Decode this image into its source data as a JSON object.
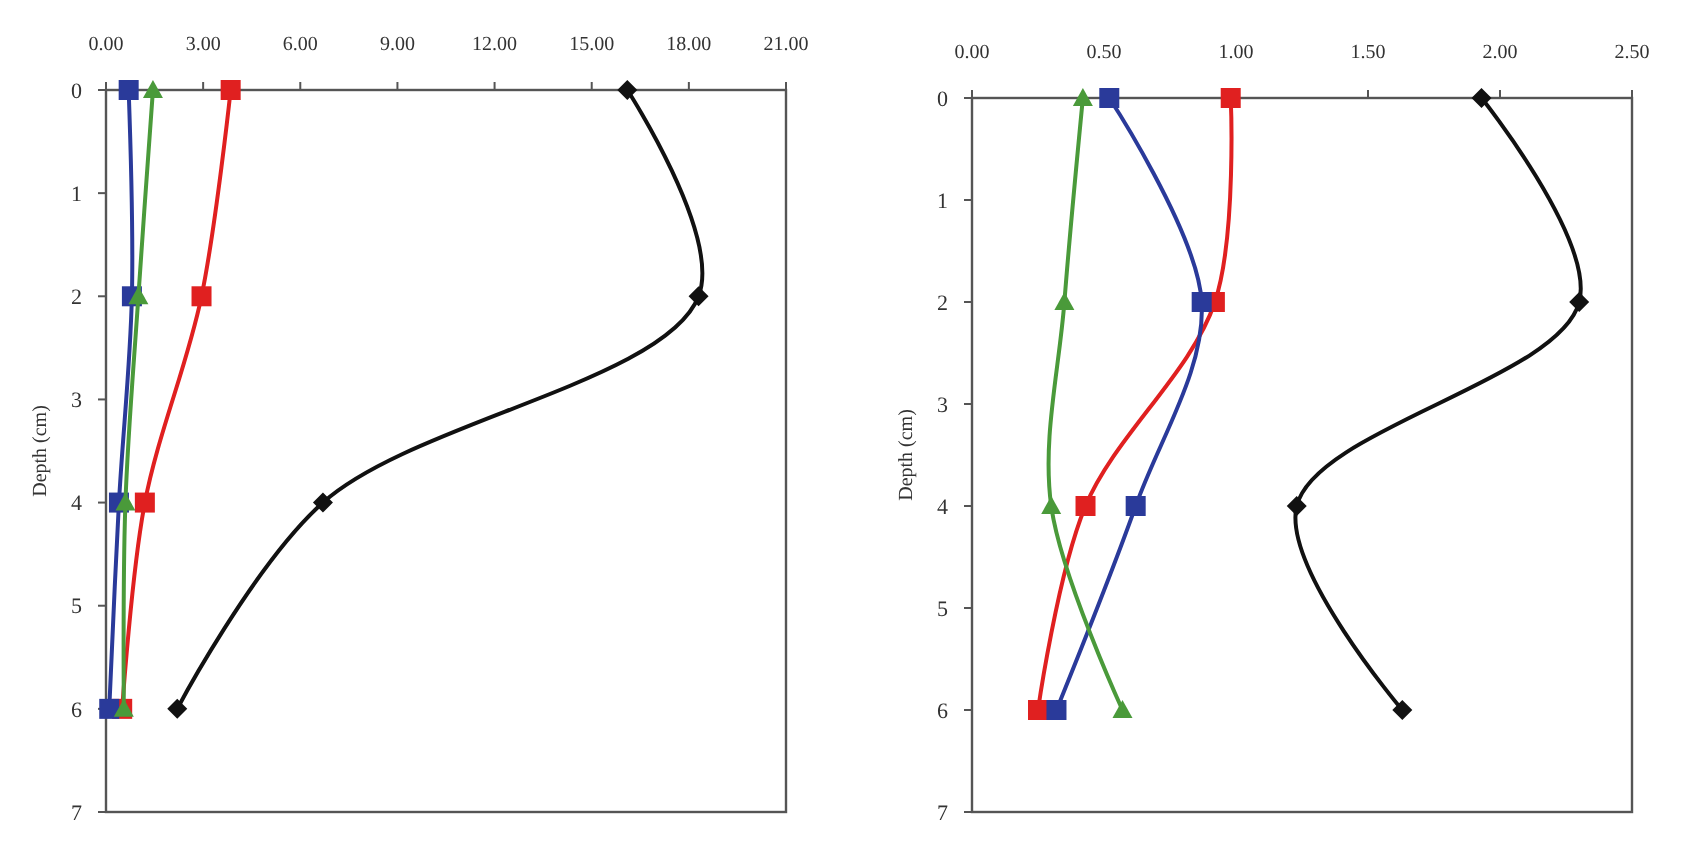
{
  "chart_data": [
    {
      "type": "line",
      "ylabel": "Depth (cm)",
      "xlim": [
        0,
        21
      ],
      "xticks": [
        {
          "value": 0,
          "label": "0.00"
        },
        {
          "value": 3,
          "label": "3.00"
        },
        {
          "value": 6,
          "label": "6.00"
        },
        {
          "value": 9,
          "label": "9.00"
        },
        {
          "value": 12,
          "label": "12.00"
        },
        {
          "value": 15,
          "label": "15.00"
        },
        {
          "value": 18,
          "label": "18.00"
        },
        {
          "value": 21,
          "label": "21.00"
        }
      ],
      "ylim": [
        7,
        0
      ],
      "yticks": [
        0,
        1,
        2,
        3,
        4,
        5,
        6,
        7
      ],
      "grid": false,
      "series": [
        {
          "color": "#111111",
          "marker": "diamond",
          "x": [
            16.1,
            18.3,
            6.7,
            2.2
          ],
          "values": [
            0,
            2,
            4,
            6
          ]
        },
        {
          "color": "#e02020",
          "marker": "square",
          "x": [
            3.85,
            2.95,
            1.2,
            0.5
          ],
          "values": [
            0,
            2,
            4,
            6
          ]
        },
        {
          "color": "#2a3a9a",
          "marker": "square",
          "x": [
            0.7,
            0.8,
            0.4,
            0.1
          ],
          "values": [
            0,
            2,
            4,
            6
          ]
        },
        {
          "color": "#4a9a3a",
          "marker": "triangle",
          "x": [
            1.45,
            1.0,
            0.6,
            0.55
          ],
          "values": [
            0,
            2,
            4,
            6
          ]
        }
      ]
    },
    {
      "type": "line",
      "ylabel": "Depth (cm)",
      "xlim": [
        0,
        2.5
      ],
      "xticks": [
        {
          "value": 0,
          "label": "0.00"
        },
        {
          "value": 0.5,
          "label": "0.50"
        },
        {
          "value": 1,
          "label": "1.00"
        },
        {
          "value": 1.5,
          "label": "1.50"
        },
        {
          "value": 2,
          "label": "2.00"
        },
        {
          "value": 2.5,
          "label": "2.50"
        }
      ],
      "ylim": [
        7,
        0
      ],
      "yticks": [
        0,
        1,
        2,
        3,
        4,
        5,
        6,
        7
      ],
      "grid": false,
      "series": [
        {
          "color": "#111111",
          "marker": "diamond",
          "x": [
            1.93,
            2.3,
            1.23,
            1.63
          ],
          "values": [
            0,
            2,
            4,
            6
          ]
        },
        {
          "color": "#e02020",
          "marker": "square",
          "x": [
            0.98,
            0.92,
            0.43,
            0.25
          ],
          "values": [
            0,
            2,
            4,
            6
          ]
        },
        {
          "color": "#2a3a9a",
          "marker": "square",
          "x": [
            0.52,
            0.87,
            0.62,
            0.32
          ],
          "values": [
            0,
            2,
            4,
            6
          ]
        },
        {
          "color": "#4a9a3a",
          "marker": "triangle",
          "x": [
            0.42,
            0.35,
            0.3,
            0.57
          ],
          "values": [
            0,
            2,
            4,
            6
          ]
        }
      ]
    }
  ]
}
